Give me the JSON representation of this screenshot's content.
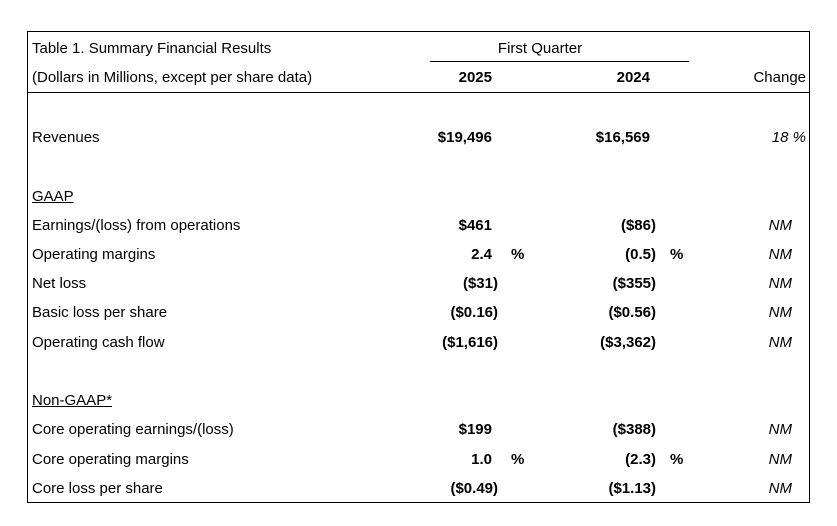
{
  "header": {
    "title": "Table 1. Summary Financial Results",
    "subtitle": "(Dollars in Millions, except per share data)",
    "group_label": "First Quarter",
    "col_2025": "2025",
    "col_2024": "2024",
    "col_change": "Change"
  },
  "revenues": {
    "label": "Revenues",
    "v2025": "$19,496",
    "v2024": "$16,569",
    "change": "18 %"
  },
  "gaap": {
    "section_label": "GAAP",
    "rows": [
      {
        "label": "Earnings/(loss) from operations",
        "v2025": "$461",
        "v2024": "($86)",
        "change": "NM"
      },
      {
        "label": "Operating margins",
        "v2025": "2.4",
        "pct2025": "%",
        "v2024": "(0.5)",
        "pct2024": "%",
        "change": "NM"
      },
      {
        "label": "Net loss",
        "v2025": "($31)",
        "v2024": "($355)",
        "change": "NM"
      },
      {
        "label": "Basic loss per share",
        "v2025": "($0.16)",
        "v2024": "($0.56)",
        "change": "NM"
      },
      {
        "label": "Operating cash flow",
        "v2025": "($1,616)",
        "v2024": "($3,362)",
        "change": "NM"
      }
    ]
  },
  "non_gaap": {
    "section_label": "Non-GAAP*",
    "rows": [
      {
        "label": "Core operating earnings/(loss)",
        "v2025": "$199",
        "v2024": "($388)",
        "change": "NM"
      },
      {
        "label": "Core operating margins",
        "v2025": "1.0",
        "pct2025": "%",
        "v2024": "(2.3)",
        "pct2024": "%",
        "change": "NM"
      },
      {
        "label": "Core loss per share",
        "v2025": "($0.49)",
        "v2024": "($1.13)",
        "change": "NM"
      }
    ]
  }
}
